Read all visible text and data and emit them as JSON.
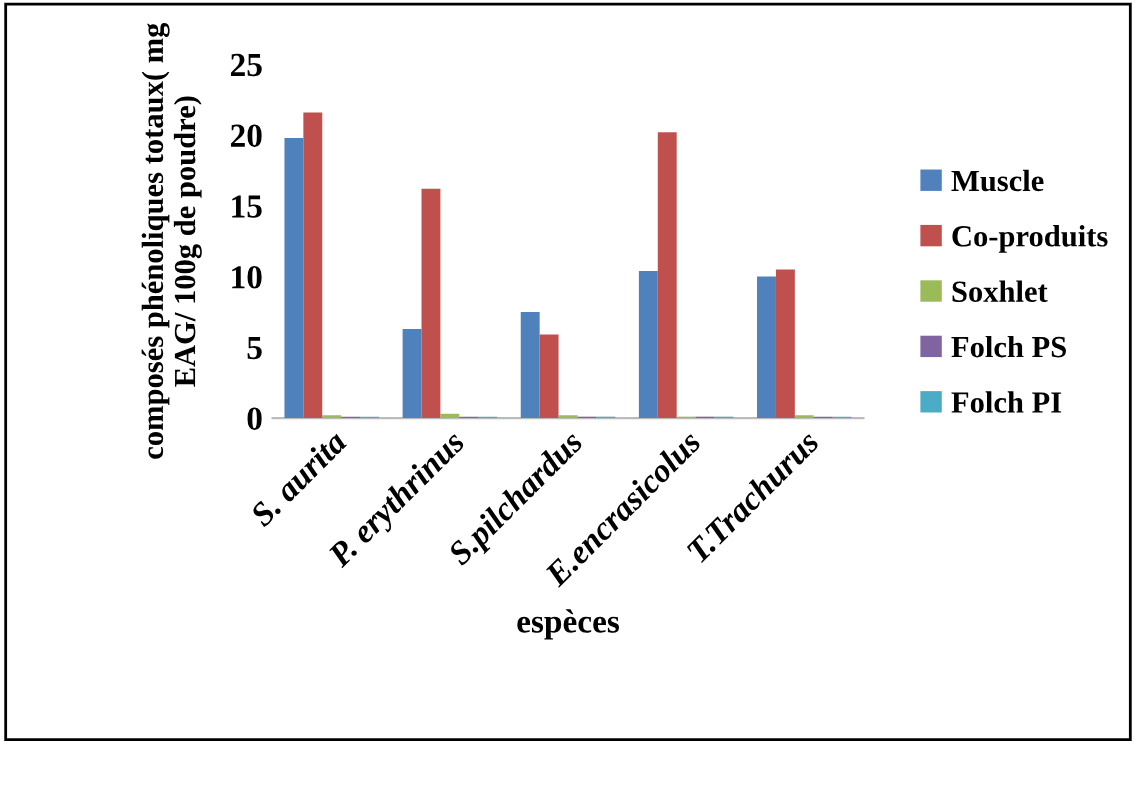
{
  "chart_data": {
    "type": "bar",
    "xlabel": "espèces",
    "ylabel": "composés phénoliques totaux( mg EAG/ 100g de poudre)",
    "categories": [
      "S. aurita",
      "P. erythrinus",
      "S.pilchardus",
      "E.encrasicolus",
      "T.Trachurus"
    ],
    "series": [
      {
        "name": "Muscle",
        "color": "#4f81bd",
        "values": [
          19.8,
          6.3,
          7.5,
          10.4,
          10.0
        ]
      },
      {
        "name": "Co-produits",
        "color": "#c0504d",
        "values": [
          21.6,
          16.2,
          5.9,
          20.2,
          10.5
        ]
      },
      {
        "name": "Soxhlet",
        "color": "#9bbb59",
        "values": [
          0.2,
          0.3,
          0.2,
          0.1,
          0.2
        ]
      },
      {
        "name": "Folch PS",
        "color": "#8064a2",
        "values": [
          0.1,
          0.1,
          0.1,
          0.1,
          0.1
        ]
      },
      {
        "name": "Folch PI",
        "color": "#4bacc6",
        "values": [
          0.1,
          0.1,
          0.1,
          0.1,
          0.1
        ]
      }
    ],
    "ylim": [
      0,
      25
    ],
    "yticks": [
      0,
      5,
      10,
      15,
      20,
      25
    ],
    "grid": false,
    "legend": "right"
  }
}
